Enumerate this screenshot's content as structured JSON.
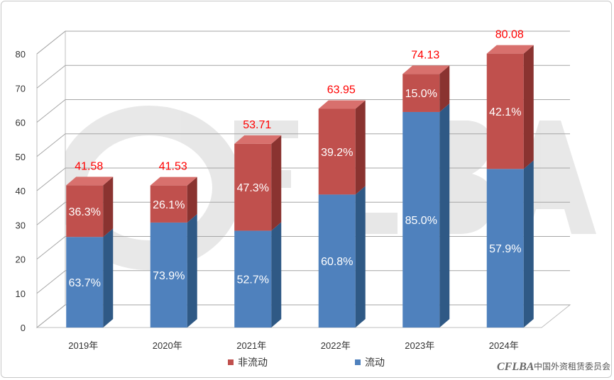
{
  "chart_data": {
    "type": "bar",
    "stacked": true,
    "three_d": true,
    "categories": [
      "2019年",
      "2020年",
      "2021年",
      "2022年",
      "2023年",
      "2024年"
    ],
    "series": [
      {
        "name": "流动",
        "color": "#4f81bd",
        "dark": "#2f5985",
        "labels": [
          "63.7%",
          "73.9%",
          "52.7%",
          "60.8%",
          "85.0%",
          "57.9%"
        ]
      },
      {
        "name": "非流动",
        "color": "#c0504d",
        "dark": "#8a3330",
        "labels": [
          "36.3%",
          "26.1%",
          "47.3%",
          "39.2%",
          "15.0%",
          "42.1%"
        ]
      }
    ],
    "totals": [
      41.58,
      41.53,
      53.71,
      63.95,
      74.13,
      80.08
    ],
    "total_labels": [
      "41.58",
      "41.53",
      "53.71",
      "63.95",
      "74.13",
      "80.08"
    ],
    "ylim": [
      0,
      80
    ],
    "yticks": [
      "0",
      "10",
      "20",
      "30",
      "40",
      "50",
      "60",
      "70",
      "80"
    ],
    "grid": true,
    "legend_position": "bottom",
    "total_label_color": "#ff0000"
  },
  "watermark": {
    "logo": "CFLBA",
    "text": "中国外资租赁委员会"
  }
}
